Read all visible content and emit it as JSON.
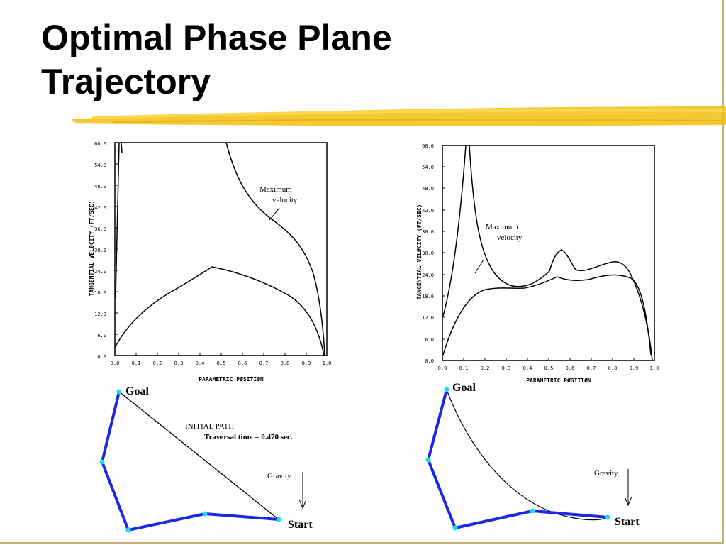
{
  "slide": {
    "title_line1": "Optimal Phase Plane",
    "title_line2": "Trajectory",
    "accent_color": "#f2c010"
  },
  "left_plot": {
    "ylabel": "TANGENTIAL VELØCITY  (FT/SEC)",
    "xlabel": "PARAMETRIC PØSITIØN",
    "yticks": [
      "0.0",
      "6.0",
      "12.0",
      "18.0",
      "24.0",
      "30.0",
      "36.0",
      "42.0",
      "48.0",
      "54.0",
      "60.0"
    ],
    "xticks": [
      "0.0",
      "0.1",
      "0.2",
      "0.3",
      "0.4",
      "0.5",
      "0.6",
      "0.7",
      "0.8",
      "0.9",
      "1.0"
    ],
    "annotation_line1": "Maximum",
    "annotation_line2": "velocity"
  },
  "right_plot": {
    "ylabel": "TANGENTIAL VELØCITY  (FT/SEC)",
    "xlabel": "PARAMETRIC PØSITIØN",
    "yticks": [
      "0.0",
      "6.0",
      "12.0",
      "18.0",
      "24.0",
      "30.0",
      "36.0",
      "42.0",
      "48.0",
      "54.0",
      "60.0"
    ],
    "xticks": [
      "0.0",
      "0.1",
      "0.2",
      "0.3",
      "0.4",
      "0.5",
      "0.6",
      "0.7",
      "0.8",
      "0.9",
      "1.0"
    ],
    "annotation_line1": "Maximum",
    "annotation_line2": "velocity"
  },
  "left_path": {
    "goal_label": "Goal",
    "start_label": "Start",
    "info_line1": "INITIAL PATH",
    "info_line2": "Traversal time = 0.470 sec.",
    "gravity_label": "Gravity"
  },
  "right_path": {
    "goal_label": "Goal",
    "start_label": "Start",
    "gravity_label": "Gravity"
  }
}
